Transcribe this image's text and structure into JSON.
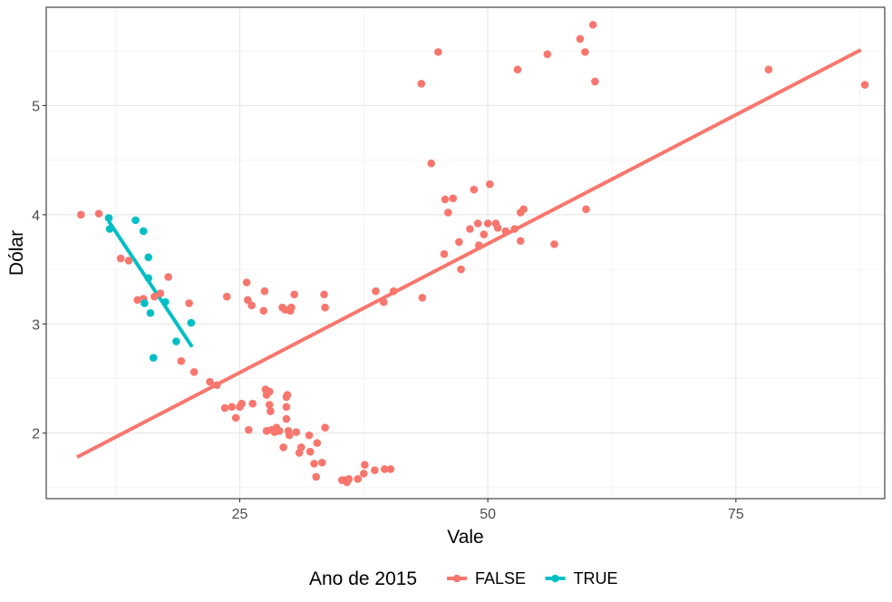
{
  "chart_data": {
    "type": "scatter",
    "xlabel": "Vale",
    "ylabel": "Dólar",
    "xlim": [
      5.5,
      90
    ],
    "ylim": [
      1.4,
      5.9
    ],
    "x_ticks": [
      25,
      50,
      75
    ],
    "y_ticks": [
      2,
      3,
      4,
      5
    ],
    "grid": true,
    "legend": {
      "title": "Ano de 2015",
      "position": "bottom"
    },
    "series": [
      {
        "name": "FALSE",
        "color": "#F8766D",
        "points": [
          [
            9.0,
            4.0
          ],
          [
            10.8,
            4.01
          ],
          [
            13.0,
            3.6
          ],
          [
            13.8,
            3.58
          ],
          [
            14.7,
            3.22
          ],
          [
            15.3,
            3.23
          ],
          [
            16.4,
            3.25
          ],
          [
            17.0,
            3.28
          ],
          [
            17.8,
            3.43
          ],
          [
            19.1,
            2.66
          ],
          [
            19.9,
            3.19
          ],
          [
            20.4,
            2.56
          ],
          [
            22.0,
            2.47
          ],
          [
            22.7,
            2.44
          ],
          [
            23.5,
            2.23
          ],
          [
            23.7,
            3.25
          ],
          [
            24.2,
            2.24
          ],
          [
            24.6,
            2.14
          ],
          [
            25.0,
            2.24
          ],
          [
            25.2,
            2.27
          ],
          [
            25.7,
            3.38
          ],
          [
            25.8,
            3.22
          ],
          [
            25.9,
            2.03
          ],
          [
            26.2,
            3.17
          ],
          [
            26.3,
            2.27
          ],
          [
            27.4,
            3.12
          ],
          [
            27.5,
            3.3
          ],
          [
            27.6,
            2.4
          ],
          [
            27.7,
            2.35
          ],
          [
            27.7,
            2.02
          ],
          [
            28.0,
            2.26
          ],
          [
            28.0,
            2.38
          ],
          [
            28.1,
            2.2
          ],
          [
            28.2,
            2.03
          ],
          [
            28.5,
            2.01
          ],
          [
            28.7,
            2.05
          ],
          [
            29.0,
            2.02
          ],
          [
            29.3,
            3.15
          ],
          [
            29.4,
            1.87
          ],
          [
            29.6,
            3.13
          ],
          [
            29.7,
            2.33
          ],
          [
            29.7,
            2.24
          ],
          [
            29.7,
            2.13
          ],
          [
            29.8,
            2.35
          ],
          [
            29.9,
            2.02
          ],
          [
            30.0,
            1.98
          ],
          [
            30.1,
            3.12
          ],
          [
            30.2,
            3.15
          ],
          [
            30.5,
            3.27
          ],
          [
            30.7,
            2.01
          ],
          [
            31.0,
            1.82
          ],
          [
            31.2,
            1.87
          ],
          [
            32.0,
            1.98
          ],
          [
            32.1,
            1.83
          ],
          [
            32.5,
            1.72
          ],
          [
            32.7,
            1.6
          ],
          [
            32.8,
            1.91
          ],
          [
            33.3,
            1.73
          ],
          [
            33.5,
            3.27
          ],
          [
            33.6,
            3.15
          ],
          [
            33.6,
            2.05
          ],
          [
            35.3,
            1.57
          ],
          [
            35.6,
            1.57
          ],
          [
            35.8,
            1.55
          ],
          [
            36.0,
            1.58
          ],
          [
            36.9,
            1.58
          ],
          [
            37.5,
            1.63
          ],
          [
            37.6,
            1.71
          ],
          [
            38.6,
            1.66
          ],
          [
            38.7,
            3.3
          ],
          [
            39.5,
            3.2
          ],
          [
            39.6,
            1.67
          ],
          [
            40.2,
            1.67
          ],
          [
            40.5,
            3.3
          ],
          [
            43.3,
            5.2
          ],
          [
            43.4,
            3.24
          ],
          [
            44.3,
            4.47
          ],
          [
            45.0,
            5.49
          ],
          [
            45.6,
            3.64
          ],
          [
            45.7,
            4.14
          ],
          [
            46.0,
            4.02
          ],
          [
            46.5,
            4.15
          ],
          [
            47.1,
            3.75
          ],
          [
            47.3,
            3.5
          ],
          [
            48.2,
            3.87
          ],
          [
            48.6,
            4.23
          ],
          [
            49.0,
            3.92
          ],
          [
            49.1,
            3.72
          ],
          [
            49.6,
            3.82
          ],
          [
            50.0,
            3.92
          ],
          [
            50.2,
            4.28
          ],
          [
            50.8,
            3.92
          ],
          [
            51.0,
            3.88
          ],
          [
            51.8,
            3.85
          ],
          [
            52.7,
            3.87
          ],
          [
            53.0,
            5.33
          ],
          [
            53.3,
            3.76
          ],
          [
            53.3,
            4.02
          ],
          [
            53.6,
            4.05
          ],
          [
            56.0,
            5.47
          ],
          [
            56.7,
            3.73
          ],
          [
            59.3,
            5.61
          ],
          [
            59.8,
            5.49
          ],
          [
            59.9,
            4.05
          ],
          [
            60.6,
            5.74
          ],
          [
            60.8,
            5.22
          ],
          [
            78.3,
            5.33
          ],
          [
            88.0,
            5.19
          ]
        ],
        "fit": [
          [
            8.6,
            1.78
          ],
          [
            87.6,
            5.51
          ]
        ]
      },
      {
        "name": "TRUE",
        "color": "#00BFC4",
        "points": [
          [
            11.8,
            3.97
          ],
          [
            11.9,
            3.87
          ],
          [
            14.5,
            3.95
          ],
          [
            15.3,
            3.85
          ],
          [
            15.4,
            3.19
          ],
          [
            15.8,
            3.61
          ],
          [
            15.8,
            3.42
          ],
          [
            16.0,
            3.1
          ],
          [
            16.3,
            2.69
          ],
          [
            17.5,
            3.2
          ],
          [
            18.6,
            2.84
          ],
          [
            20.1,
            3.01
          ]
        ],
        "fit": [
          [
            11.8,
            3.94
          ],
          [
            20.2,
            2.79
          ]
        ]
      }
    ]
  }
}
